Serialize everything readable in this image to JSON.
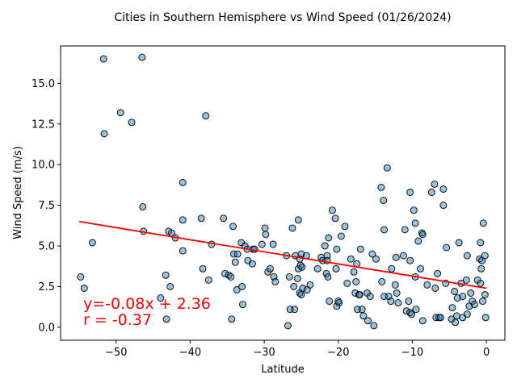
{
  "chart_data": {
    "type": "scatter",
    "title": "Cities in Southern Hemisphere vs Wind Speed (01/26/2024)",
    "xlabel": "Latitude",
    "ylabel": "Wind Speed (m/s)",
    "xlim": [
      -57.5,
      2.5
    ],
    "ylim": [
      -0.8,
      17.3
    ],
    "xticks": [
      -50,
      -40,
      -30,
      -20,
      -10,
      0
    ],
    "yticks": [
      0.0,
      2.5,
      5.0,
      7.5,
      10.0,
      12.5,
      15.0
    ],
    "xtick_labels": [
      "−50",
      "−40",
      "−30",
      "−20",
      "−10",
      "0"
    ],
    "ytick_labels": [
      "0.0",
      "2.5",
      "5.0",
      "7.5",
      "10.0",
      "12.5",
      "15.0"
    ],
    "grid": false,
    "marker_color": "#1f77b4",
    "regression_color": "#ff0000",
    "points": [
      [
        -54.8,
        3.1
      ],
      [
        -54.3,
        2.4
      ],
      [
        -53.2,
        5.2
      ],
      [
        -51.7,
        16.5
      ],
      [
        -51.6,
        11.9
      ],
      [
        -49.4,
        13.2
      ],
      [
        -47.9,
        12.6
      ],
      [
        -46.5,
        16.6
      ],
      [
        -46.4,
        7.4
      ],
      [
        -46.3,
        5.9
      ],
      [
        -44.0,
        1.8
      ],
      [
        -43.3,
        3.2
      ],
      [
        -43.2,
        0.5
      ],
      [
        -42.9,
        5.9
      ],
      [
        -42.7,
        2.5
      ],
      [
        -42.5,
        5.8
      ],
      [
        -42.0,
        5.5
      ],
      [
        -41.0,
        8.9
      ],
      [
        -41.0,
        6.6
      ],
      [
        -41.0,
        4.7
      ],
      [
        -38.5,
        6.7
      ],
      [
        -38.3,
        3.6
      ],
      [
        -37.9,
        13.0
      ],
      [
        -37.5,
        2.9
      ],
      [
        -37.1,
        5.1
      ],
      [
        -35.5,
        6.7
      ],
      [
        -35.3,
        3.3
      ],
      [
        -34.8,
        3.2
      ],
      [
        -34.5,
        3.1
      ],
      [
        -34.4,
        0.5
      ],
      [
        -34.2,
        6.2
      ],
      [
        -34.1,
        4.5
      ],
      [
        -33.9,
        4.0
      ],
      [
        -33.7,
        2.3
      ],
      [
        -33.6,
        4.5
      ],
      [
        -33.1,
        5.2
      ],
      [
        -33.0,
        2.5
      ],
      [
        -32.9,
        1.4
      ],
      [
        -32.6,
        5.0
      ],
      [
        -32.3,
        4.8
      ],
      [
        -32.2,
        4.1
      ],
      [
        -31.6,
        3.9
      ],
      [
        -31.5,
        4.8
      ],
      [
        -31.3,
        4.8
      ],
      [
        -30.3,
        5.1
      ],
      [
        -29.9,
        6.1
      ],
      [
        -29.8,
        5.7
      ],
      [
        -29.5,
        3.4
      ],
      [
        -29.2,
        3.6
      ],
      [
        -28.8,
        5.1
      ],
      [
        -28.7,
        3.1
      ],
      [
        -28.5,
        2.8
      ],
      [
        -27.0,
        4.4
      ],
      [
        -26.8,
        0.1
      ],
      [
        -26.6,
        3.1
      ],
      [
        -26.5,
        1.1
      ],
      [
        -26.2,
        6.1
      ],
      [
        -26.0,
        2.5
      ],
      [
        -25.9,
        1.1
      ],
      [
        -25.8,
        4.4
      ],
      [
        -25.5,
        3.0
      ],
      [
        -25.4,
        6.6
      ],
      [
        -25.4,
        3.6
      ],
      [
        -25.2,
        2.1
      ],
      [
        -25.2,
        4.2
      ],
      [
        -25.1,
        3.8
      ],
      [
        -25.0,
        2.0
      ],
      [
        -25.0,
        4.5
      ],
      [
        -24.9,
        3.7
      ],
      [
        -24.8,
        2.4
      ],
      [
        -24.3,
        4.4
      ],
      [
        -24.2,
        2.3
      ],
      [
        -23.8,
        2.6
      ],
      [
        -22.8,
        3.6
      ],
      [
        -22.3,
        4.3
      ],
      [
        -22.1,
        4.1
      ],
      [
        -21.8,
        5.0
      ],
      [
        -21.6,
        3.3
      ],
      [
        -21.5,
        4.4
      ],
      [
        -21.5,
        4.1
      ],
      [
        -21.4,
        3.1
      ],
      [
        -21.3,
        5.5
      ],
      [
        -21.2,
        1.6
      ],
      [
        -20.8,
        7.2
      ],
      [
        -20.4,
        6.7
      ],
      [
        -20.3,
        3.6
      ],
      [
        -20.2,
        4.8
      ],
      [
        -20.2,
        1.3
      ],
      [
        -20.0,
        1.6
      ],
      [
        -19.9,
        1.5
      ],
      [
        -19.6,
        5.6
      ],
      [
        -19.1,
        6.2
      ],
      [
        -18.8,
        2.7
      ],
      [
        -18.3,
        4.2
      ],
      [
        -17.9,
        3.4
      ],
      [
        -17.7,
        2.1
      ],
      [
        -17.6,
        2.8
      ],
      [
        -17.5,
        3.9
      ],
      [
        -17.4,
        1.1
      ],
      [
        -17.2,
        2.0
      ],
      [
        -17.1,
        2.0
      ],
      [
        -17.0,
        4.8
      ],
      [
        -16.8,
        1.1
      ],
      [
        -16.6,
        0.7
      ],
      [
        -16.1,
        2.1
      ],
      [
        -16.0,
        0.4
      ],
      [
        -15.7,
        1.9
      ],
      [
        -15.4,
        4.5
      ],
      [
        -15.2,
        0.1
      ],
      [
        -14.9,
        4.2
      ],
      [
        -14.2,
        8.6
      ],
      [
        -14.1,
        2.8
      ],
      [
        -13.9,
        7.8
      ],
      [
        -13.8,
        6.0
      ],
      [
        -13.8,
        1.9
      ],
      [
        -13.4,
        9.8
      ],
      [
        -13.2,
        1.9
      ],
      [
        -12.9,
        1.6
      ],
      [
        -12.8,
        3.6
      ],
      [
        -12.3,
        2.6
      ],
      [
        -12.2,
        4.3
      ],
      [
        -12.1,
        2.1
      ],
      [
        -11.9,
        1.5
      ],
      [
        -11.2,
        4.4
      ],
      [
        -11.0,
        6.0
      ],
      [
        -10.8,
        1.0
      ],
      [
        -10.5,
        1.6
      ],
      [
        -10.3,
        8.3
      ],
      [
        -10.3,
        4.1
      ],
      [
        -10.3,
        0.9
      ],
      [
        -10.1,
        0.8
      ],
      [
        -9.8,
        7.2
      ],
      [
        -9.6,
        6.4
      ],
      [
        -9.6,
        3.1
      ],
      [
        -9.5,
        1.1
      ],
      [
        -9.2,
        5.3
      ],
      [
        -8.9,
        3.6
      ],
      [
        -8.7,
        5.8
      ],
      [
        -8.6,
        5.7
      ],
      [
        -8.6,
        0.4
      ],
      [
        -8.0,
        2.6
      ],
      [
        -7.4,
        8.3
      ],
      [
        -7.0,
        8.8
      ],
      [
        -6.9,
        2.4
      ],
      [
        -6.8,
        0.6
      ],
      [
        -6.6,
        3.3
      ],
      [
        -6.4,
        0.6
      ],
      [
        -6.2,
        0.6
      ],
      [
        -5.8,
        8.5
      ],
      [
        -5.8,
        7.5
      ],
      [
        -5.5,
        2.7
      ],
      [
        -5.4,
        4.9
      ],
      [
        -4.7,
        0.5
      ],
      [
        -4.6,
        1.2
      ],
      [
        -4.3,
        2.2
      ],
      [
        -4.2,
        0.3
      ],
      [
        -4.0,
        0.7
      ],
      [
        -3.9,
        1.8
      ],
      [
        -3.7,
        5.2
      ],
      [
        -3.4,
        2.7
      ],
      [
        -3.2,
        0.6
      ],
      [
        -3.2,
        1.9
      ],
      [
        -2.7,
        2.9
      ],
      [
        -2.6,
        0.8
      ],
      [
        -2.6,
        4.4
      ],
      [
        -2.3,
        1.3
      ],
      [
        -2.1,
        2.1
      ],
      [
        -1.9,
        1.6
      ],
      [
        -1.6,
        1.4
      ],
      [
        -1.2,
        2.9
      ],
      [
        -0.9,
        4.2
      ],
      [
        -0.8,
        5.2
      ],
      [
        -0.8,
        2.7
      ],
      [
        -0.7,
        3.6
      ],
      [
        -0.6,
        4.1
      ],
      [
        -0.5,
        1.6
      ],
      [
        -0.4,
        6.4
      ],
      [
        -0.2,
        4.4
      ],
      [
        -0.2,
        2.0
      ],
      [
        -0.1,
        0.6
      ]
    ],
    "regression": {
      "slope": -0.08,
      "intercept": 2.36,
      "x_range": [
        -55.0,
        0.0
      ],
      "y_range": [
        6.5,
        2.4
      ],
      "equation_text": "y=-0.08x + 2.36",
      "r_text": "r = -0.37"
    }
  }
}
